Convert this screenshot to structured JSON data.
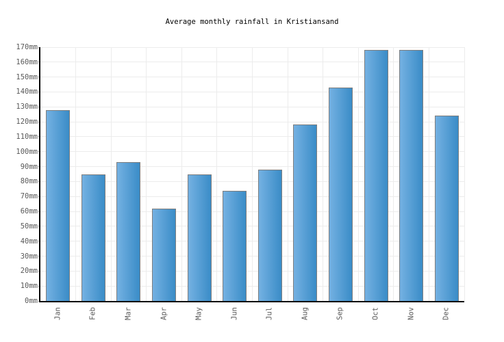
{
  "chart_data": {
    "type": "bar",
    "title": "Average monthly rainfall in Kristiansand",
    "categories": [
      "Jan",
      "Feb",
      "Mar",
      "Apr",
      "May",
      "Jun",
      "Jul",
      "Aug",
      "Sep",
      "Oct",
      "Nov",
      "Dec"
    ],
    "values": [
      128,
      85,
      93,
      62,
      85,
      74,
      88,
      118,
      143,
      168,
      168,
      124
    ],
    "unit": "mm",
    "ytick_suffix": "mm",
    "ylim": [
      0,
      170
    ],
    "ytick_step": 10,
    "xlabel": "",
    "ylabel": "",
    "grid": true,
    "legend_position": "none",
    "colors": {
      "bar_gradient_left": "#74b1e2",
      "bar_gradient_right": "#3a8cc7",
      "bar_border": "#7d7d7d",
      "gridline": "#ececec",
      "axis": "#000000",
      "tick_mark": "#c4c4c4",
      "tick_label": "#595959",
      "title": "#000000",
      "background": "#ffffff"
    }
  }
}
